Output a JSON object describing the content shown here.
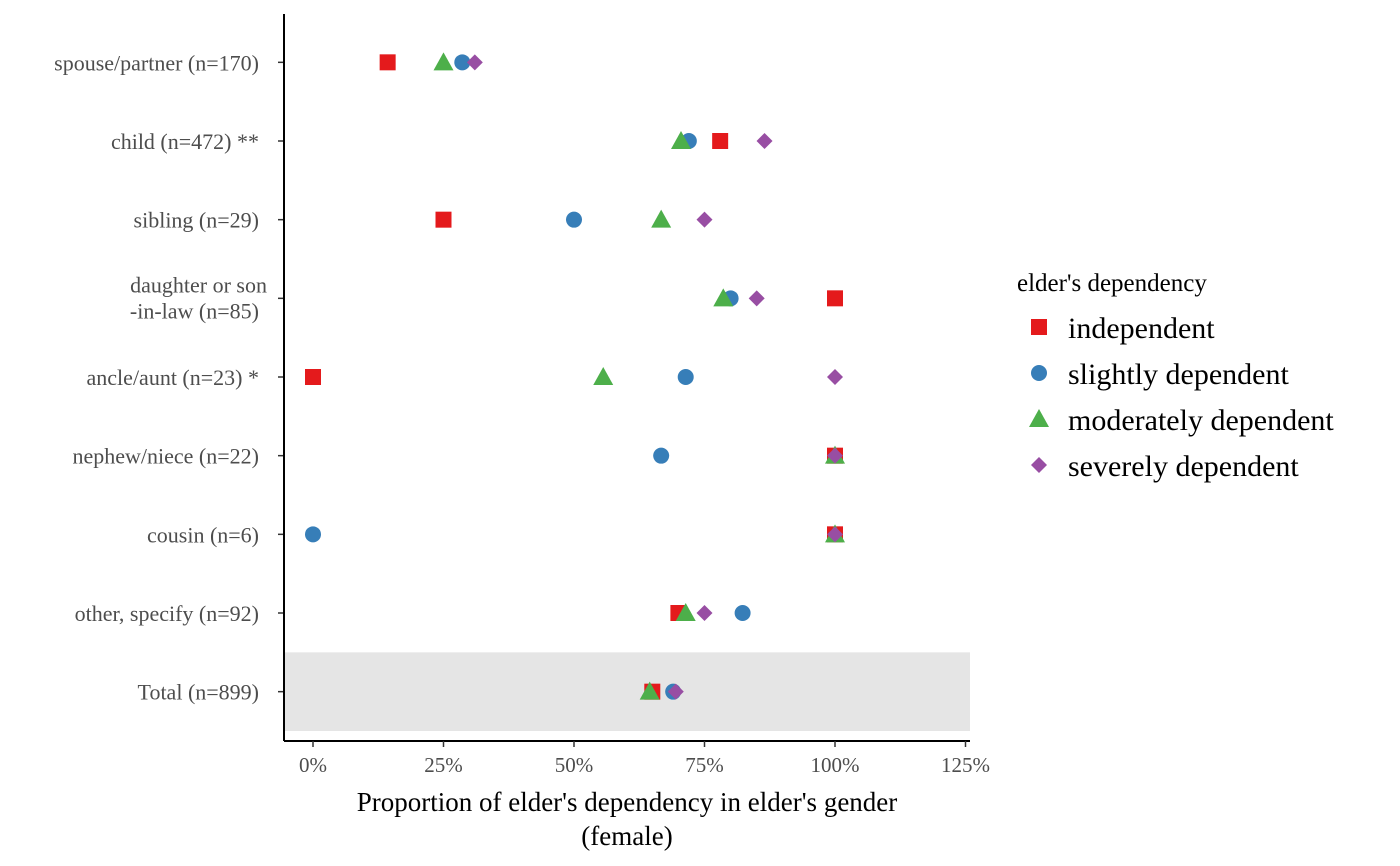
{
  "chart_data": {
    "type": "scatter",
    "xlabel": "Proportion of elder's dependency in elder's gender",
    "xlabel_line2": "(female)",
    "xlim": [
      -0.06,
      1.255
    ],
    "x_ticks": [
      0,
      0.25,
      0.5,
      0.75,
      1.0,
      1.25
    ],
    "x_tick_labels": [
      "0%",
      "25%",
      "50%",
      "75%",
      "100%",
      "125%"
    ],
    "categories": [
      [
        "spouse/partner (n=170)"
      ],
      [
        "child (n=472) **"
      ],
      [
        "sibling (n=29)"
      ],
      [
        "daughter or son",
        "-in-law (n=85)"
      ],
      [
        "ancle/aunt (n=23) *"
      ],
      [
        "nephew/niece (n=22)"
      ],
      [
        "cousin (n=6)"
      ],
      [
        "other, specify (n=92)"
      ],
      [
        "Total (n=899)"
      ]
    ],
    "highlight_category_index": 8,
    "highlight_color": "#e5e5e5",
    "legend": {
      "title": "elder's dependency",
      "position": "right"
    },
    "series": [
      {
        "name": "independent",
        "shape": "square",
        "color": "#e41a1c",
        "values": [
          0.143,
          0.78,
          0.25,
          1.0,
          0.0,
          1.0,
          1.0,
          0.7,
          0.65
        ]
      },
      {
        "name": "slightly dependent",
        "shape": "circle",
        "color": "#377eb8",
        "values": [
          0.286,
          0.72,
          0.5,
          0.8,
          0.714,
          0.667,
          0.0,
          0.823,
          0.69
        ]
      },
      {
        "name": "moderately dependent",
        "shape": "triangle",
        "color": "#4daf4a",
        "values": [
          0.25,
          0.705,
          0.667,
          0.786,
          0.556,
          1.0,
          1.0,
          0.714,
          0.645
        ]
      },
      {
        "name": "severely dependent",
        "shape": "diamond",
        "color": "#984ea3",
        "values": [
          0.31,
          0.865,
          0.75,
          0.85,
          1.0,
          1.0,
          1.0,
          0.75,
          0.695
        ]
      }
    ]
  }
}
